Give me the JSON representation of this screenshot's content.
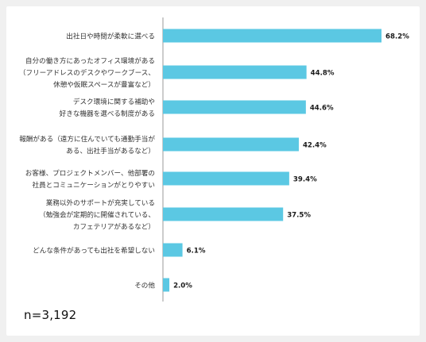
{
  "chart_data": {
    "type": "bar",
    "orientation": "horizontal",
    "categories": [
      [
        "出社日や時間が柔軟に選べる"
      ],
      [
        "自分の働き方にあったオフィス環境がある",
        "（フリーアドレスのデスクやワークブース、",
        "休憩や仮眠スペースが豊富など）"
      ],
      [
        "デスク環境に関する補助や",
        "好きな機器を選べる制度がある"
      ],
      [
        "報酬がある（遠方に住んでいても通勤手当が",
        "ある、出社手当があるなど）"
      ],
      [
        "お客様、プロジェクトメンバー、他部署の",
        "社員とコミュニケーションがとりやすい"
      ],
      [
        "業務以外のサポートが充実している",
        "（勉強会が定期的に開催されている、",
        "カフェテリアがあるなど）"
      ],
      [
        "どんな条件があっても出社を希望しない"
      ],
      [
        "その他"
      ]
    ],
    "values": [
      68.2,
      44.8,
      44.6,
      42.4,
      39.4,
      37.5,
      6.1,
      2.0
    ],
    "value_labels": [
      "68.2%",
      "44.8%",
      "44.6%",
      "42.4%",
      "39.4%",
      "37.5%",
      "6.1%",
      "2.0%"
    ],
    "xlim": [
      0,
      68.2
    ],
    "bar_color": "#5bc8e3",
    "axis_color": "#999999",
    "grid": false
  },
  "note": "n=3,192"
}
